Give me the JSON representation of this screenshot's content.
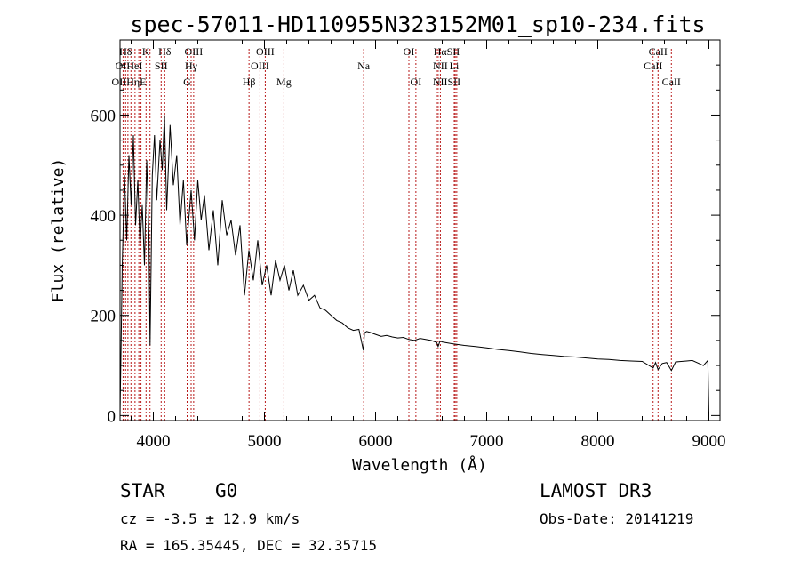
{
  "chart_data": {
    "type": "line",
    "title": "spec-57011-HD110955N323152M01_sp10-234.fits",
    "xlabel": "Wavelength (Å)",
    "ylabel": "Flux (relative)",
    "xlim": [
      3700,
      9100
    ],
    "ylim": [
      -10,
      750
    ],
    "x_ticks": [
      4000,
      5000,
      6000,
      7000,
      8000,
      9000
    ],
    "y_ticks": [
      0,
      200,
      400,
      600
    ],
    "series": [
      {
        "name": "spectrum",
        "x": [
          3700,
          3720,
          3740,
          3760,
          3780,
          3800,
          3820,
          3840,
          3860,
          3880,
          3900,
          3920,
          3940,
          3960,
          3970,
          3990,
          4010,
          4030,
          4060,
          4080,
          4100,
          4120,
          4150,
          4180,
          4210,
          4240,
          4270,
          4300,
          4340,
          4370,
          4400,
          4430,
          4460,
          4500,
          4540,
          4580,
          4620,
          4660,
          4700,
          4740,
          4780,
          4820,
          4860,
          4900,
          4940,
          4980,
          5020,
          5060,
          5100,
          5140,
          5180,
          5220,
          5260,
          5300,
          5350,
          5400,
          5450,
          5500,
          5550,
          5600,
          5650,
          5700,
          5750,
          5800,
          5850,
          5890,
          5900,
          5920,
          5950,
          6000,
          6050,
          6100,
          6150,
          6200,
          6250,
          6300,
          6350,
          6400,
          6450,
          6500,
          6550,
          6563,
          6580,
          6600,
          6650,
          6700,
          6800,
          6900,
          7000,
          7100,
          7200,
          7300,
          7400,
          7500,
          7600,
          7700,
          7800,
          7900,
          8000,
          8100,
          8200,
          8300,
          8400,
          8498,
          8520,
          8542,
          8580,
          8620,
          8662,
          8700,
          8750,
          8800,
          8850,
          8900,
          8950,
          8990,
          9000
        ],
        "values": [
          0,
          300,
          480,
          350,
          520,
          420,
          560,
          380,
          470,
          340,
          420,
          300,
          510,
          360,
          140,
          480,
          560,
          430,
          550,
          490,
          600,
          410,
          580,
          460,
          520,
          380,
          470,
          340,
          450,
          350,
          470,
          390,
          440,
          330,
          410,
          300,
          430,
          360,
          390,
          320,
          380,
          240,
          330,
          270,
          350,
          260,
          300,
          240,
          310,
          270,
          300,
          250,
          290,
          240,
          260,
          230,
          240,
          215,
          210,
          200,
          190,
          185,
          175,
          170,
          172,
          130,
          165,
          168,
          166,
          162,
          158,
          160,
          157,
          155,
          156,
          152,
          150,
          154,
          152,
          150,
          146,
          138,
          149,
          147,
          145,
          143,
          140,
          138,
          135,
          132,
          130,
          127,
          124,
          122,
          120,
          118,
          117,
          115,
          113,
          112,
          110,
          109,
          108,
          95,
          106,
          92,
          104,
          106,
          90,
          107,
          108,
          109,
          110,
          105,
          100,
          110,
          5
        ]
      }
    ],
    "spectral_lines": [
      {
        "label": "Hδ",
        "wl": 3750,
        "row": 0
      },
      {
        "label": "K",
        "wl": 3934,
        "row": 0
      },
      {
        "label": "Hδ",
        "wl": 4102,
        "row": 0
      },
      {
        "label": "OIII",
        "wl": 4363,
        "row": 0
      },
      {
        "label": "OIII",
        "wl": 5007,
        "row": 0
      },
      {
        "label": "OI",
        "wl": 6300,
        "row": 0
      },
      {
        "label": "HαSII",
        "wl": 6640,
        "row": 0
      },
      {
        "label": "CaII",
        "wl": 8542,
        "row": 0
      },
      {
        "label": "OIHeI",
        "wl": 3780,
        "row": 1
      },
      {
        "label": "SII",
        "wl": 4070,
        "row": 1
      },
      {
        "label": "Hγ",
        "wl": 4340,
        "row": 1
      },
      {
        "label": "OIII",
        "wl": 4959,
        "row": 1
      },
      {
        "label": "Na",
        "wl": 5893,
        "row": 1
      },
      {
        "label": "NII",
        "wl": 6583,
        "row": 1
      },
      {
        "label": "Li",
        "wl": 6708,
        "row": 1
      },
      {
        "label": "CaII",
        "wl": 8498,
        "row": 1
      },
      {
        "label": "OIIHηE",
        "wl": 3780,
        "row": 2
      },
      {
        "label": "G",
        "wl": 4304,
        "row": 2
      },
      {
        "label": "Hβ",
        "wl": 4861,
        "row": 2
      },
      {
        "label": "Mg",
        "wl": 5175,
        "row": 2
      },
      {
        "label": "OI",
        "wl": 6363,
        "row": 2
      },
      {
        "label": "NIISII",
        "wl": 6640,
        "row": 2
      },
      {
        "label": "CaII",
        "wl": 8662,
        "row": 2
      }
    ],
    "marker_lines": [
      3727,
      3750,
      3771,
      3798,
      3835,
      3869,
      3889,
      3934,
      3970,
      4070,
      4102,
      4304,
      4340,
      4363,
      4861,
      4959,
      5007,
      5175,
      5893,
      6300,
      6363,
      6548,
      6563,
      6583,
      6708,
      6717,
      6731,
      8498,
      8542,
      8662
    ]
  },
  "info": {
    "object_class": "STAR",
    "subclass": "G0",
    "survey": "LAMOST DR3",
    "redshift": "cz = -3.5 ± 12.9 km/s",
    "obs_date": "Obs-Date: 20141219",
    "coords": "RA = 165.35445, DEC =  32.35715"
  }
}
